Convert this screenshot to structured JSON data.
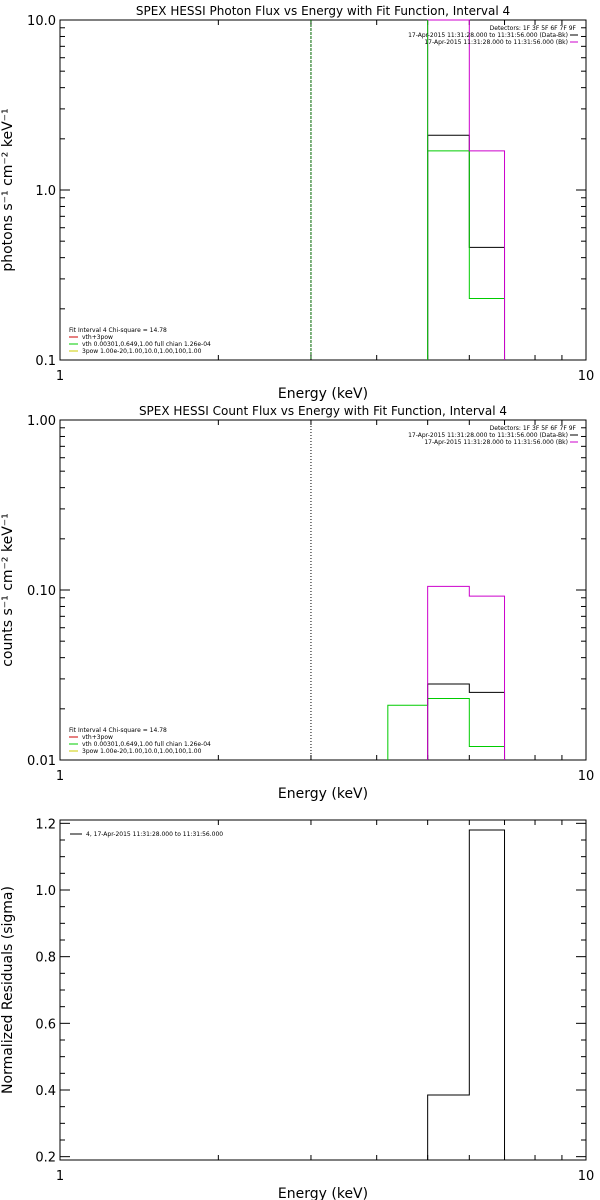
{
  "chart_data": [
    {
      "type": "line",
      "title": "SPEX HESSI Photon Flux vs Energy with Fit Function, Interval 4",
      "xlabel": "Energy (keV)",
      "ylabel": "photons s⁻¹ cm⁻² keV⁻¹",
      "xscale": "log",
      "yscale": "log",
      "xlim": [
        1,
        10
      ],
      "ylim": [
        0.1,
        10.0
      ],
      "x_ticks": [
        {
          "v": 1,
          "label": "1"
        },
        {
          "v": 10,
          "label": "10"
        }
      ],
      "y_ticks": [
        {
          "v": 0.1,
          "label": "0.1"
        },
        {
          "v": 1.0,
          "label": "1.0"
        },
        {
          "v": 10.0,
          "label": "10.0"
        }
      ],
      "legend_top": {
        "header": "Detectors: 1F 3F 5F 6F 7F 9F",
        "items": [
          {
            "text": "17-Apr-2015 11:31:28.000 to 11:31:56.000 (Data-Bk)",
            "color": "#000000"
          },
          {
            "text": "17-Apr-2015 11:31:28.000 to 11:31:56.000 (Bk)",
            "color": "#cc00cc"
          }
        ]
      },
      "legend_bottom": {
        "header": "Fit Interval 4   Chi-square = 14.78",
        "items": [
          {
            "text": "vth+3pow",
            "color": "#cc0000"
          },
          {
            "text": "vth 0.00301,0.649,1.00  full chian 1.26e-04",
            "color": "#00cc00"
          },
          {
            "text": "3pow 1.00e-20,1.00,10.0,1.00,100,1.00",
            "color": "#cccc00"
          }
        ]
      },
      "vlines": [
        {
          "x": 3.0,
          "color": "#006600",
          "style": "dashed"
        }
      ],
      "series": [
        {
          "color": "#000000",
          "edges": [
            5.0,
            6.0,
            7.0
          ],
          "values": [
            2.1,
            0.46
          ]
        },
        {
          "color": "#00cc00",
          "edges": [
            5.0,
            6.0,
            7.0
          ],
          "values": [
            1.7,
            0.23
          ]
        },
        {
          "color": "#cc00cc",
          "edges": [
            5.0,
            6.0,
            7.0
          ],
          "values": [
            10.0,
            1.7
          ]
        }
      ],
      "vsegments": [
        {
          "x": 5.0,
          "y1": 0.1,
          "y2": 10.0,
          "color": "#00cc00"
        }
      ]
    },
    {
      "type": "line",
      "title": "SPEX HESSI Count Flux vs Energy with Fit Function, Interval 4",
      "xlabel": "Energy (keV)",
      "ylabel": "counts s⁻¹ cm⁻² keV⁻¹",
      "xscale": "log",
      "yscale": "log",
      "xlim": [
        1,
        10
      ],
      "ylim": [
        0.01,
        1.0
      ],
      "x_ticks": [
        {
          "v": 1,
          "label": "1"
        },
        {
          "v": 10,
          "label": "10"
        }
      ],
      "y_ticks": [
        {
          "v": 0.01,
          "label": "0.01"
        },
        {
          "v": 0.1,
          "label": "0.10"
        },
        {
          "v": 1.0,
          "label": "1.00"
        }
      ],
      "legend_top": {
        "header": "Detectors: 1F 3F 5F 6F 7F 9F",
        "items": [
          {
            "text": "17-Apr-2015 11:31:28.000 to 11:31:56.000 (Data-Bk)",
            "color": "#000000"
          },
          {
            "text": "17-Apr-2015 11:31:28.000 to 11:31:56.000 (Bk)",
            "color": "#cc00cc"
          }
        ]
      },
      "legend_bottom": {
        "header": "Fit Interval 4   Chi-square = 14.78",
        "items": [
          {
            "text": "vth+3pow",
            "color": "#cc0000"
          },
          {
            "text": "vth 0.00301,0.649,1.00  full chian 1.26e-04",
            "color": "#00cc00"
          },
          {
            "text": "3pow 1.00e-20,1.00,10.0,1.00,100,1.00",
            "color": "#cccc00"
          }
        ]
      },
      "vlines": [
        {
          "x": 3.0,
          "color": "#000000",
          "style": "dotted"
        }
      ],
      "series": [
        {
          "color": "#00cc00",
          "edges": [
            4.2,
            5.0,
            6.0,
            7.0
          ],
          "values": [
            0.021,
            0.023,
            0.012
          ]
        },
        {
          "color": "#000000",
          "edges": [
            5.0,
            6.0,
            7.0
          ],
          "values": [
            0.028,
            0.025
          ]
        },
        {
          "color": "#cc00cc",
          "edges": [
            5.0,
            6.0,
            7.0
          ],
          "values": [
            0.105,
            0.092
          ]
        }
      ],
      "vsegments": []
    },
    {
      "type": "line",
      "title": "",
      "xlabel": "Energy (keV)",
      "ylabel": "Normalized Residuals (sigma)",
      "xscale": "log",
      "yscale": "linear",
      "xlim": [
        1,
        10
      ],
      "ylim": [
        0.19,
        1.21
      ],
      "x_ticks": [
        {
          "v": 1,
          "label": "1"
        },
        {
          "v": 10,
          "label": "10"
        }
      ],
      "y_ticks": [
        {
          "v": 0.2,
          "label": "0.2"
        },
        {
          "v": 0.4,
          "label": "0.4"
        },
        {
          "v": 0.6,
          "label": "0.6"
        },
        {
          "v": 0.8,
          "label": "0.8"
        },
        {
          "v": 1.0,
          "label": "1.0"
        },
        {
          "v": 1.2,
          "label": "1.2"
        }
      ],
      "legend_top": {
        "header": "",
        "items": [
          {
            "text": "4, 17-Apr-2015 11:31:28.000 to 11:31:56.000",
            "color": "#000000"
          }
        ]
      },
      "legend_bottom": {
        "header": "",
        "items": []
      },
      "vlines": [],
      "series": [
        {
          "color": "#000000",
          "edges": [
            5.0,
            6.0,
            7.0
          ],
          "values": [
            0.385,
            1.18
          ]
        }
      ],
      "vsegments": []
    }
  ]
}
